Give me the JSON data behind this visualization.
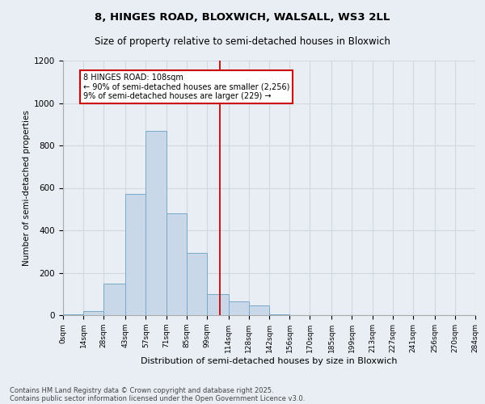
{
  "title1": "8, HINGES ROAD, BLOXWICH, WALSALL, WS3 2LL",
  "title2": "Size of property relative to semi-detached houses in Bloxwich",
  "xlabel": "Distribution of semi-detached houses by size in Bloxwich",
  "ylabel": "Number of semi-detached properties",
  "footnote1": "Contains HM Land Registry data © Crown copyright and database right 2025.",
  "footnote2": "Contains public sector information licensed under the Open Government Licence v3.0.",
  "annotation_line1": "8 HINGES ROAD: 108sqm",
  "annotation_line2": "← 90% of semi-detached houses are smaller (2,256)",
  "annotation_line3": "9% of semi-detached houses are larger (229) →",
  "property_size": 108,
  "bin_edges": [
    0,
    14,
    28,
    43,
    57,
    71,
    85,
    99,
    114,
    128,
    142,
    156,
    170,
    185,
    199,
    213,
    227,
    241,
    256,
    270,
    284
  ],
  "bin_labels": [
    "0sqm",
    "14sqm",
    "28sqm",
    "43sqm",
    "57sqm",
    "71sqm",
    "85sqm",
    "99sqm",
    "114sqm",
    "128sqm",
    "142sqm",
    "156sqm",
    "170sqm",
    "185sqm",
    "199sqm",
    "213sqm",
    "227sqm",
    "241sqm",
    "256sqm",
    "270sqm",
    "284sqm"
  ],
  "counts": [
    5,
    20,
    150,
    570,
    870,
    480,
    295,
    100,
    65,
    45,
    5,
    0,
    0,
    0,
    0,
    0,
    0,
    0,
    0,
    0
  ],
  "bar_color": "#c8d8e8",
  "bar_edge_color": "#7aaac8",
  "vline_color": "#cc0000",
  "vline_x": 108,
  "annotation_box_color": "#cc0000",
  "annotation_bg_color": "#ffffff",
  "grid_color": "#d0d8e0",
  "background_color": "#e8eef4",
  "ylim": [
    0,
    1200
  ],
  "yticks": [
    0,
    200,
    400,
    600,
    800,
    1000,
    1200
  ]
}
